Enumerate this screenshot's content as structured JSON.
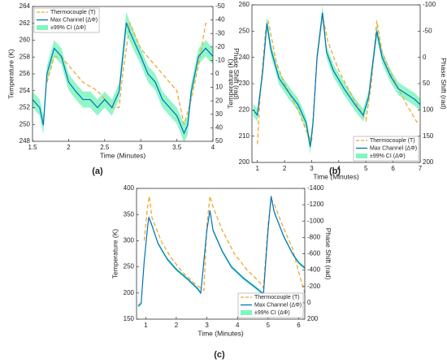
{
  "chart_data": [
    {
      "type": "line",
      "panel_label": "(a)",
      "xlabel": "Time (Minutes)",
      "ylabel": "Temperature (K)",
      "y2label": "Phase Shift (rad)",
      "legend": "upper left",
      "xlim": [
        1.5,
        4
      ],
      "xticks": [
        1.5,
        2,
        2.5,
        3,
        3.5,
        4
      ],
      "ylim": [
        248,
        264
      ],
      "yticks": [
        248,
        250,
        252,
        254,
        256,
        258,
        260,
        262,
        264
      ],
      "y2lim": [
        50,
        -50
      ],
      "y2ticks": [
        -50,
        -40,
        -30,
        -20,
        -10,
        0,
        10,
        20,
        30,
        40,
        50
      ],
      "series": [
        {
          "name": "Thermocouple (T)",
          "style": "dashed",
          "color": "#f0a830",
          "axis": "y",
          "x": [
            1.7,
            1.8,
            1.9,
            2.0,
            2.2,
            2.4,
            2.6,
            2.7,
            2.75,
            2.85,
            3.0,
            3.2,
            3.4,
            3.5,
            3.6,
            3.7,
            3.8,
            3.9,
            3.95
          ],
          "values": [
            255,
            258,
            258,
            257,
            255,
            254,
            252,
            252,
            256,
            262,
            259,
            257,
            255,
            254,
            250,
            253,
            257,
            262,
            262
          ]
        },
        {
          "name": "Max Channel (ΔΦ)",
          "style": "solid",
          "color": "#0072bd",
          "axis": "y2",
          "x": [
            1.5,
            1.6,
            1.65,
            1.7,
            1.8,
            1.9,
            2.0,
            2.1,
            2.2,
            2.3,
            2.4,
            2.5,
            2.6,
            2.7,
            2.8,
            2.85,
            2.9,
            3.0,
            3.1,
            3.2,
            3.3,
            3.4,
            3.5,
            3.6,
            3.65,
            3.7,
            3.8,
            3.9,
            4.0
          ],
          "values": [
            19,
            25,
            38,
            0,
            -19,
            -13,
            6,
            13,
            19,
            19,
            25,
            19,
            25,
            13,
            -38,
            -31,
            -25,
            -13,
            0,
            6,
            19,
            25,
            31,
            44,
            38,
            13,
            -13,
            -19,
            -13
          ]
        },
        {
          "name": "±99% CI (ΔΦ)",
          "style": "band",
          "color": "#7ff5c0",
          "axis": "y2",
          "values": [
            6,
            6,
            7,
            6,
            6,
            6,
            6,
            6,
            6,
            6,
            6,
            6,
            6,
            6,
            8,
            7,
            7,
            6,
            6,
            6,
            6,
            6,
            6,
            7,
            7,
            6,
            6,
            6,
            6
          ]
        }
      ]
    },
    {
      "type": "line",
      "panel_label": "(b)",
      "xlabel": "Time (Minutes)",
      "ylabel": "Temperature (K)",
      "y2label": "Phase Shift (rad)",
      "legend": "lower right",
      "xlim": [
        0.8,
        7
      ],
      "xticks": [
        1,
        2,
        3,
        4,
        5,
        6,
        7
      ],
      "ylim": [
        200,
        260
      ],
      "yticks": [
        200,
        210,
        220,
        230,
        240,
        250,
        260
      ],
      "y2lim": [
        200,
        -100
      ],
      "y2ticks": [
        -100,
        -50,
        0,
        50,
        100,
        150,
        200
      ],
      "series": [
        {
          "name": "Thermocouple (T)",
          "style": "dashed",
          "color": "#f0a830",
          "axis": "y",
          "x": [
            1.0,
            1.1,
            1.3,
            1.4,
            1.7,
            2.0,
            2.5,
            2.8,
            3.0,
            3.2,
            3.4,
            3.6,
            4.0,
            4.5,
            5.0,
            5.2,
            5.4,
            5.6,
            6.0,
            6.5,
            6.9
          ],
          "values": [
            207,
            225,
            250,
            254,
            238,
            230,
            220,
            212,
            208,
            240,
            256,
            246,
            235,
            225,
            216,
            230,
            254,
            242,
            232,
            222,
            215
          ]
        },
        {
          "name": "Max Channel (ΔΦ)",
          "style": "solid",
          "color": "#0072bd",
          "axis": "y2",
          "x": [
            0.85,
            1.0,
            1.2,
            1.35,
            1.5,
            1.8,
            2.2,
            2.5,
            2.8,
            2.95,
            3.05,
            3.2,
            3.4,
            3.55,
            3.8,
            4.2,
            4.6,
            4.9,
            5.1,
            5.4,
            5.6,
            5.9,
            6.2,
            6.5,
            6.8,
            7.0
          ],
          "values": [
            100,
            110,
            25,
            -65,
            -15,
            40,
            70,
            90,
            125,
            170,
            125,
            0,
            -85,
            -10,
            25,
            60,
            90,
            110,
            75,
            -50,
            0,
            35,
            60,
            70,
            80,
            90
          ]
        },
        {
          "name": "±99% CI (ΔΦ)",
          "style": "band",
          "color": "#7ff5c0",
          "axis": "y2",
          "values": [
            12,
            12,
            12,
            14,
            12,
            12,
            12,
            12,
            12,
            14,
            12,
            12,
            14,
            12,
            12,
            12,
            12,
            12,
            12,
            14,
            12,
            12,
            12,
            12,
            12,
            12
          ]
        }
      ]
    },
    {
      "type": "line",
      "panel_label": "(c)",
      "xlabel": "Time (Minutes)",
      "ylabel": "Temperature (K)",
      "y2label": "Phase Shift (rad)",
      "legend": "lower right",
      "xlim": [
        0.7,
        6.2
      ],
      "xticks": [
        1,
        2,
        3,
        4,
        5,
        6
      ],
      "ylim": [
        150,
        400
      ],
      "yticks": [
        150,
        200,
        250,
        300,
        350,
        400
      ],
      "y2lim": [
        200,
        -1400
      ],
      "y2ticks": [
        -1400,
        -1200,
        -1000,
        -800,
        -600,
        -400,
        -200,
        0,
        200
      ],
      "series": [
        {
          "name": "Thermocouple (T)",
          "style": "dashed",
          "color": "#f0a830",
          "axis": "y",
          "x": [
            0.95,
            1.05,
            1.12,
            1.2,
            1.5,
            1.8,
            2.2,
            2.6,
            2.9,
            3.0,
            3.1,
            3.2,
            3.5,
            3.9,
            4.3,
            4.7,
            4.85,
            5.0,
            5.1,
            5.2,
            5.5,
            5.8,
            6.0,
            6.2
          ],
          "values": [
            300,
            360,
            385,
            345,
            300,
            270,
            240,
            218,
            205,
            330,
            385,
            365,
            320,
            275,
            245,
            222,
            210,
            330,
            380,
            370,
            325,
            285,
            240,
            200
          ]
        },
        {
          "name": "Max Channel (ΔΦ)",
          "style": "solid",
          "color": "#0072bd",
          "axis": "y2",
          "x": [
            0.75,
            0.85,
            0.95,
            1.05,
            1.1,
            1.2,
            1.4,
            1.7,
            2.0,
            2.4,
            2.7,
            2.8,
            2.9,
            3.0,
            3.1,
            3.2,
            3.5,
            3.8,
            4.2,
            4.6,
            4.85,
            4.9,
            5.0,
            5.1,
            5.2,
            5.5,
            5.8,
            6.0,
            6.2
          ],
          "values": [
            40,
            8,
            -504,
            -888,
            -1048,
            -952,
            -728,
            -536,
            -408,
            -280,
            -171,
            -120,
            -504,
            -888,
            -1131,
            -888,
            -632,
            -440,
            -299,
            -184,
            -107,
            -376,
            -888,
            -1304,
            -1112,
            -824,
            -600,
            -491,
            -427
          ]
        },
        {
          "name": "±99% CI (ΔΦ)",
          "style": "band",
          "color": "#7ff5c0",
          "axis": "y2",
          "values": [
            20,
            20,
            25,
            25,
            25,
            20,
            20,
            20,
            20,
            20,
            20,
            20,
            25,
            25,
            25,
            20,
            20,
            20,
            20,
            20,
            20,
            25,
            25,
            25,
            20,
            20,
            20,
            20,
            20
          ]
        }
      ]
    }
  ]
}
